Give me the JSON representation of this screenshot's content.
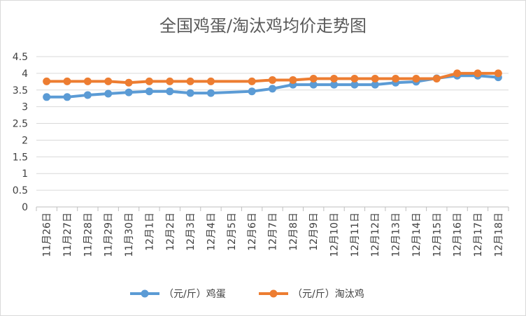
{
  "chart_data": {
    "type": "line",
    "title": "全国鸡蛋/淘汰鸡均价走势图",
    "xlabel": "",
    "ylabel": "",
    "ylim": [
      0,
      4.5
    ],
    "yticks": [
      "0",
      "0.5",
      "1",
      "1.5",
      "2",
      "2.5",
      "3",
      "3.5",
      "4",
      "4.5"
    ],
    "grid": true,
    "legend_position": "bottom",
    "categories": [
      "11月26日",
      "11月27日",
      "11月28日",
      "11月29日",
      "11月30日",
      "12月1日",
      "12月2日",
      "12月3日",
      "12月4日",
      "12月5日",
      "12月6日",
      "12月7日",
      "12月8日",
      "12月9日",
      "12月10日",
      "12月11日",
      "12月12日",
      "12月13日",
      "12月14日",
      "12月15日",
      "12月16日",
      "12月17日",
      "12月18日"
    ],
    "series": [
      {
        "name": "（元/斤）鸡蛋",
        "color": "#5B9BD5",
        "values": [
          3.29,
          3.29,
          3.35,
          3.39,
          3.43,
          3.46,
          3.46,
          3.41,
          3.41,
          null,
          3.46,
          3.54,
          3.66,
          3.66,
          3.66,
          3.66,
          3.66,
          3.72,
          3.75,
          3.85,
          3.93,
          3.93,
          3.88
        ]
      },
      {
        "name": "（元/斤）淘汰鸡",
        "color": "#ED7D31",
        "values": [
          3.76,
          3.76,
          3.76,
          3.76,
          3.72,
          3.76,
          3.76,
          3.76,
          3.76,
          null,
          3.76,
          3.8,
          3.8,
          3.84,
          3.84,
          3.84,
          3.84,
          3.84,
          3.84,
          3.84,
          4.0,
          4.0,
          4.0
        ]
      }
    ]
  }
}
